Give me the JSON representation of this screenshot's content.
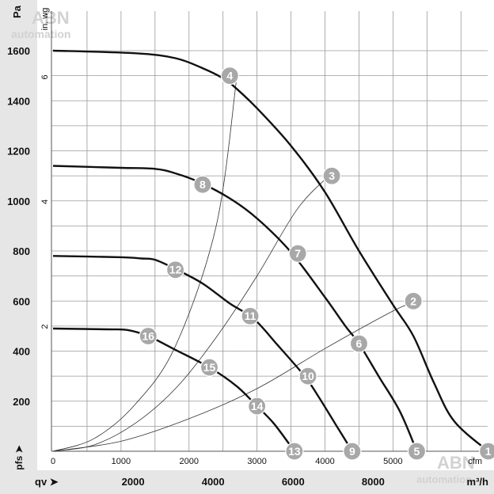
{
  "chart_data": {
    "type": "line",
    "units": {
      "y_primary": "Pa",
      "y_secondary": "in. wg",
      "x_primary": "cfm",
      "x_secondary": "m³/h",
      "y_symbol": "pfs",
      "x_symbol": "qv"
    },
    "y_ticks_pa": [
      200,
      400,
      600,
      800,
      1000,
      1200,
      1400,
      1600
    ],
    "y_ticks_inwg": [
      2,
      4,
      6
    ],
    "x_ticks_cfm": [
      0,
      1000,
      2000,
      3000,
      4000,
      5000
    ],
    "x_ticks_m3h": [
      2000,
      4000,
      6000,
      8000
    ],
    "xlim_cfm": [
      0,
      6500
    ],
    "ylim_pa": [
      0,
      1600
    ],
    "fan_curves": [
      {
        "points": [
          [
            0,
            1600
          ],
          [
            1200,
            1590
          ],
          [
            1800,
            1570
          ],
          [
            2200,
            1530
          ],
          [
            2500,
            1490
          ],
          [
            2650,
            1460
          ],
          [
            3000,
            1370
          ],
          [
            3500,
            1220
          ],
          [
            4000,
            1035
          ],
          [
            4500,
            800
          ],
          [
            5000,
            585
          ],
          [
            5300,
            460
          ],
          [
            5600,
            275
          ],
          [
            5900,
            120
          ],
          [
            6400,
            0
          ]
        ]
      },
      {
        "points": [
          [
            0,
            1140
          ],
          [
            1000,
            1132
          ],
          [
            1500,
            1128
          ],
          [
            1800,
            1110
          ],
          [
            2150,
            1075
          ],
          [
            2600,
            1010
          ],
          [
            3000,
            930
          ],
          [
            3500,
            795
          ],
          [
            4000,
            615
          ],
          [
            4300,
            500
          ],
          [
            4500,
            430
          ],
          [
            4800,
            295
          ],
          [
            5100,
            160
          ],
          [
            5350,
            0
          ]
        ]
      },
      {
        "points": [
          [
            0,
            780
          ],
          [
            1000,
            775
          ],
          [
            1300,
            770
          ],
          [
            1500,
            765
          ],
          [
            1800,
            728
          ],
          [
            2200,
            670
          ],
          [
            2600,
            590
          ],
          [
            2950,
            530
          ],
          [
            3300,
            425
          ],
          [
            3700,
            300
          ],
          [
            3900,
            220
          ],
          [
            4150,
            110
          ],
          [
            4400,
            0
          ]
        ]
      },
      {
        "points": [
          [
            0,
            490
          ],
          [
            800,
            487
          ],
          [
            1100,
            484
          ],
          [
            1400,
            460
          ],
          [
            1800,
            405
          ],
          [
            2300,
            335
          ],
          [
            2700,
            260
          ],
          [
            3000,
            180
          ],
          [
            3250,
            110
          ],
          [
            3550,
            0
          ]
        ]
      }
    ],
    "system_curves": [
      {
        "points": [
          [
            0,
            0
          ],
          [
            600,
            50
          ],
          [
            1200,
            185
          ],
          [
            1800,
            420
          ],
          [
            2400,
            900
          ],
          [
            2700,
            1490
          ]
        ]
      },
      {
        "points": [
          [
            0,
            0
          ],
          [
            600,
            25
          ],
          [
            1200,
            110
          ],
          [
            1800,
            250
          ],
          [
            2400,
            455
          ],
          [
            3000,
            700
          ],
          [
            3600,
            970
          ],
          [
            4100,
            1110
          ]
        ]
      },
      {
        "points": [
          [
            0,
            0
          ],
          [
            1000,
            40
          ],
          [
            2000,
            130
          ],
          [
            3000,
            250
          ],
          [
            4000,
            410
          ],
          [
            5000,
            560
          ],
          [
            5350,
            600
          ]
        ]
      }
    ],
    "operating_points": [
      {
        "label": "1",
        "x": 6400,
        "y": 0
      },
      {
        "label": "2",
        "x": 5300,
        "y": 600
      },
      {
        "label": "3",
        "x": 4100,
        "y": 1100
      },
      {
        "label": "4",
        "x": 2600,
        "y": 1500
      },
      {
        "label": "5",
        "x": 5350,
        "y": 0
      },
      {
        "label": "6",
        "x": 4500,
        "y": 430
      },
      {
        "label": "7",
        "x": 3600,
        "y": 790
      },
      {
        "label": "8",
        "x": 2200,
        "y": 1065
      },
      {
        "label": "9",
        "x": 4400,
        "y": 0
      },
      {
        "label": "10",
        "x": 3750,
        "y": 300
      },
      {
        "label": "11",
        "x": 2900,
        "y": 540
      },
      {
        "label": "12",
        "x": 1800,
        "y": 725
      },
      {
        "label": "13",
        "x": 3550,
        "y": 0
      },
      {
        "label": "14",
        "x": 3000,
        "y": 180
      },
      {
        "label": "15",
        "x": 2300,
        "y": 335
      },
      {
        "label": "16",
        "x": 1400,
        "y": 460
      }
    ],
    "watermark": "ABN\nautomation"
  }
}
